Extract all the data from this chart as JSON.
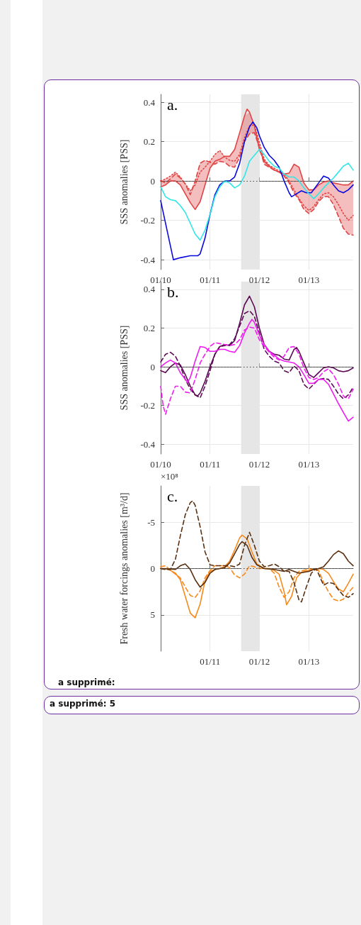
{
  "chart_data": [
    {
      "type": "line",
      "title": "a.",
      "ylabel": "SSS anomalies [PSS]",
      "xlim": [
        "2010-01-01",
        "2013-11-25"
      ],
      "xticks": [
        {
          "value": "2010-01-01",
          "label": "01/10"
        },
        {
          "value": "2011-01-01",
          "label": "01/11"
        },
        {
          "value": "2012-01-01",
          "label": "01/12"
        },
        {
          "value": "2013-01-01",
          "label": "01/13"
        }
      ],
      "ylim": [
        -0.45,
        0.44
      ],
      "yticks": [
        -0.4,
        -0.2,
        0,
        0.2,
        0.4
      ],
      "grid": true,
      "marker": "none",
      "x": [
        "2010-01-01",
        "2010-02-06",
        "2010-03-14",
        "2010-04-20",
        "2010-05-26",
        "2010-07-02",
        "2010-08-08",
        "2010-09-13",
        "2010-10-20",
        "2010-11-25",
        "2011-01-01",
        "2011-02-06",
        "2011-03-14",
        "2011-04-20",
        "2011-05-26",
        "2011-07-02",
        "2011-08-08",
        "2011-09-13",
        "2011-10-20",
        "2011-11-25",
        "2012-01-01",
        "2012-02-06",
        "2012-03-14",
        "2012-04-20",
        "2012-05-26",
        "2012-07-02",
        "2012-08-08",
        "2012-09-13",
        "2012-10-20",
        "2012-11-25",
        "2013-01-01",
        "2013-02-06",
        "2013-03-14",
        "2013-04-20",
        "2013-05-26",
        "2013-07-02",
        "2013-08-08",
        "2013-09-13",
        "2013-10-20",
        "2013-11-25"
      ],
      "bands": [
        {
          "axis": "x",
          "from": "2011-08-19",
          "to": "2012-01-01",
          "color": "#e6e6e6"
        }
      ],
      "ref_lines": [
        {
          "axis": "y",
          "value": 0,
          "color": "#444444",
          "line_style": "dotted"
        }
      ],
      "series": [
        {
          "color": "#e04444",
          "line_style": "dashed",
          "values": [
            0,
            -0.01,
            0.01,
            0.035,
            0.015,
            -0.015,
            -0.07,
            0,
            0.09,
            0.105,
            0.095,
            0.085,
            0.1,
            0.095,
            0.075,
            0.07,
            0.12,
            0.2,
            0.24,
            0.245,
            0.17,
            0.085,
            0.07,
            0.055,
            0.045,
            0.025,
            -0.01,
            -0.06,
            -0.095,
            -0.145,
            -0.165,
            -0.145,
            -0.105,
            -0.08,
            -0.08,
            -0.12,
            -0.18,
            -0.24,
            -0.27,
            -0.275
          ],
          "lower": [
            -0.03,
            -0.02,
            0,
            0,
            -0.02,
            -0.065,
            -0.11,
            -0.145,
            -0.105,
            -0.02,
            0.065,
            0.085,
            0.1,
            0.095,
            0.075,
            0.07,
            0.12,
            0.2,
            0.24,
            0.245,
            0.16,
            0.085,
            0.07,
            0.055,
            0.045,
            0.025,
            -0.01,
            -0.06,
            -0.095,
            -0.145,
            -0.165,
            -0.145,
            -0.105,
            -0.08,
            -0.08,
            -0.12,
            -0.18,
            -0.24,
            -0.27,
            -0.275
          ],
          "upper": [
            0,
            0.01,
            0.025,
            0.045,
            0.02,
            -0.015,
            -0.05,
            0,
            0.09,
            0.105,
            0.1,
            0.135,
            0.155,
            0.125,
            0.125,
            0.16,
            0.245,
            0.33,
            0.35,
            0.285,
            0.195,
            0.11,
            0.08,
            0.065,
            0.05,
            0.035,
            0.04,
            0.085,
            0.07,
            -0.01,
            -0.045,
            -0.045,
            -0.02,
            -0.005,
            0,
            -0.01,
            -0.015,
            -0.02,
            -0.02,
            0
          ]
        },
        {
          "color": "#e04444",
          "line_style": "dotted",
          "values": [
            0,
            0.01,
            0.025,
            0.045,
            0.02,
            -0.015,
            -0.05,
            -0.02,
            0.045,
            0.07,
            0.1,
            0.135,
            0.155,
            0.12,
            0.105,
            0.1,
            0.135,
            0.22,
            0.28,
            0.285,
            0.195,
            0.11,
            0.08,
            0.065,
            0.05,
            0.035,
            0,
            -0.045,
            -0.09,
            -0.125,
            -0.15,
            -0.13,
            -0.095,
            -0.065,
            -0.06,
            -0.08,
            -0.12,
            -0.165,
            -0.2,
            -0.175
          ]
        },
        {
          "color": "#e04444",
          "line_style": "solid",
          "x": [
            "2010-01-01",
            "2010-02-06",
            "2010-03-14",
            "2010-04-20",
            "2010-05-26",
            "2010-07-02",
            "2010-08-08",
            "2010-09-13",
            "2010-10-20",
            "2010-11-25",
            "2011-01-01",
            "2011-02-06",
            "2011-03-14",
            "2011-04-20",
            "2011-05-26",
            "2011-07-02",
            "2011-08-08",
            "2011-09-13",
            "2011-10-02",
            "2011-10-20",
            "2011-11-25",
            "2012-01-01",
            "2012-02-06",
            "2012-03-14",
            "2012-04-20",
            "2012-05-26",
            "2012-07-02",
            "2012-08-08",
            "2012-09-13",
            "2012-10-20",
            "2012-11-25",
            "2013-01-01",
            "2013-02-06",
            "2013-03-14",
            "2013-04-20",
            "2013-05-26",
            "2013-07-02",
            "2013-08-08",
            "2013-09-13",
            "2013-10-20",
            "2013-11-25"
          ],
          "values": [
            -0.03,
            -0.02,
            0,
            0,
            -0.02,
            -0.065,
            -0.11,
            -0.145,
            -0.105,
            -0.02,
            0.065,
            0.1,
            0.11,
            0.125,
            0.125,
            0.16,
            0.245,
            0.33,
            0.365,
            0.35,
            0.28,
            0.16,
            0.1,
            0.075,
            0.055,
            0.045,
            0.035,
            0.04,
            0.085,
            0.07,
            -0.01,
            -0.045,
            -0.045,
            -0.02,
            -0.005,
            0,
            -0.01,
            -0.015,
            -0.02,
            -0.02,
            0
          ]
        },
        {
          "color": "#0a0ae0",
          "line_style": "solid",
          "x": [
            "2010-01-01",
            "2010-04-05",
            "2010-05-26",
            "2010-08-08",
            "2010-10-02",
            "2010-10-20",
            "2010-11-25",
            "2011-01-01",
            "2011-02-06",
            "2011-03-14",
            "2011-04-20",
            "2011-05-26",
            "2011-07-02",
            "2011-08-08",
            "2011-09-13",
            "2011-10-20",
            "2011-11-14",
            "2011-12-13",
            "2012-01-01",
            "2012-02-06",
            "2012-03-14",
            "2012-04-20",
            "2012-05-26",
            "2012-07-02",
            "2012-08-08",
            "2012-08-26",
            "2012-10-02",
            "2012-11-07",
            "2012-12-13",
            "2013-01-19",
            "2013-03-14",
            "2013-04-20",
            "2013-05-26",
            "2013-07-02",
            "2013-08-08",
            "2013-09-13",
            "2013-10-20",
            "2013-11-25"
          ],
          "values": [
            -0.1,
            -0.4,
            -0.39,
            -0.38,
            -0.38,
            -0.37,
            -0.29,
            -0.17,
            -0.07,
            -0.02,
            0,
            0,
            0.02,
            0.09,
            0.2,
            0.275,
            0.3,
            0.27,
            0.23,
            0.17,
            0.13,
            0.105,
            0.07,
            0,
            -0.06,
            -0.08,
            -0.065,
            -0.05,
            -0.06,
            -0.06,
            -0.01,
            0.025,
            0.015,
            -0.02,
            -0.05,
            -0.06,
            -0.045,
            -0.02
          ]
        },
        {
          "color": "#30e6e6",
          "line_style": "solid",
          "values": [
            -0.03,
            -0.08,
            -0.095,
            -0.1,
            -0.125,
            -0.16,
            -0.215,
            -0.27,
            -0.3,
            -0.25,
            -0.17,
            -0.08,
            -0.03,
            0,
            -0.01,
            -0.035,
            -0.02,
            0.025,
            0.1,
            0.13,
            0.16,
            0.135,
            0.1,
            0.075,
            0.065,
            0.035,
            0.02,
            0.02,
            0,
            -0.035,
            -0.065,
            -0.09,
            -0.065,
            -0.035,
            -0.01,
            0.015,
            0.045,
            0.075,
            0.09,
            0.055
          ]
        }
      ]
    },
    {
      "type": "line",
      "title": "b.",
      "ylabel": "SSS anomalies [PSS]",
      "xlim": [
        "2010-01-01",
        "2013-11-25"
      ],
      "xticks": [
        {
          "value": "2010-01-01",
          "label": "01/10"
        },
        {
          "value": "2011-01-01",
          "label": "01/11"
        },
        {
          "value": "2012-01-01",
          "label": "01/12"
        },
        {
          "value": "2013-01-01",
          "label": "01/13"
        }
      ],
      "ylim": [
        -0.45,
        0.44
      ],
      "yticks": [
        -0.4,
        -0.2,
        0,
        0.2,
        0.4
      ],
      "grid": true,
      "marker": "none",
      "x": [
        "2010-01-01",
        "2010-02-06",
        "2010-03-14",
        "2010-04-20",
        "2010-05-26",
        "2010-07-02",
        "2010-08-08",
        "2010-09-13",
        "2010-10-20",
        "2010-11-25",
        "2011-01-01",
        "2011-02-06",
        "2011-03-14",
        "2011-04-20",
        "2011-05-26",
        "2011-07-02",
        "2011-08-08",
        "2011-09-13",
        "2011-10-20",
        "2011-11-25",
        "2012-01-01",
        "2012-02-06",
        "2012-03-14",
        "2012-04-20",
        "2012-05-26",
        "2012-07-02",
        "2012-08-08",
        "2012-09-13",
        "2012-10-20",
        "2012-11-25",
        "2013-01-01",
        "2013-02-06",
        "2013-03-14",
        "2013-04-20",
        "2013-05-26",
        "2013-07-02",
        "2013-08-08",
        "2013-09-13",
        "2013-10-20",
        "2013-11-25"
      ],
      "bands": [
        {
          "axis": "x",
          "from": "2011-08-19",
          "to": "2012-01-01",
          "color": "#e6e6e6"
        }
      ],
      "ref_lines": [
        {
          "axis": "y",
          "value": 0,
          "color": "#444444",
          "line_style": "dotted"
        }
      ],
      "series": [
        {
          "color": "#5c0a55",
          "line_style": "dashed",
          "values": [
            0.025,
            0.065,
            0.075,
            0.055,
            0.005,
            -0.065,
            -0.115,
            -0.145,
            -0.16,
            -0.1,
            -0.02,
            0.065,
            0.105,
            0.11,
            0.115,
            0.145,
            0.21,
            0.275,
            0.29,
            0.26,
            0.175,
            0.09,
            0.055,
            0.03,
            0.02,
            -0.02,
            -0.03,
            0.005,
            -0.02,
            -0.09,
            -0.115,
            -0.09,
            -0.065,
            -0.06,
            -0.065,
            -0.1,
            -0.14,
            -0.165,
            -0.145,
            -0.105
          ]
        },
        {
          "color": "#5c0a55",
          "line_style": "solid",
          "x": [
            "2010-01-01",
            "2010-02-06",
            "2010-03-14",
            "2010-04-20",
            "2010-05-26",
            "2010-07-02",
            "2010-08-08",
            "2010-09-13",
            "2010-10-02",
            "2010-10-20",
            "2010-11-25",
            "2011-01-01",
            "2011-02-06",
            "2011-03-14",
            "2011-04-20",
            "2011-05-26",
            "2011-07-02",
            "2011-08-08",
            "2011-09-13",
            "2011-10-20",
            "2011-11-25",
            "2012-01-01",
            "2012-02-06",
            "2012-03-14",
            "2012-04-20",
            "2012-05-26",
            "2012-07-02",
            "2012-08-08",
            "2012-09-13",
            "2012-10-02",
            "2012-10-20",
            "2012-11-25",
            "2013-01-01",
            "2013-02-06",
            "2013-03-14",
            "2013-04-20",
            "2013-05-26",
            "2013-07-02",
            "2013-08-08",
            "2013-09-13",
            "2013-10-20",
            "2013-11-25"
          ],
          "values": [
            -0.02,
            -0.03,
            0,
            0.02,
            0.01,
            -0.04,
            -0.1,
            -0.145,
            -0.15,
            -0.135,
            -0.075,
            0,
            0.065,
            0.105,
            0.115,
            0.11,
            0.135,
            0.225,
            0.32,
            0.365,
            0.31,
            0.2,
            0.115,
            0.08,
            0.065,
            0.06,
            0.04,
            0.035,
            0.09,
            0.1,
            0.08,
            0.02,
            -0.04,
            -0.055,
            -0.03,
            -0.005,
            0,
            -0.005,
            -0.02,
            -0.025,
            -0.02,
            -0.005
          ]
        },
        {
          "color": "#f01cf0",
          "line_style": "dashed",
          "x": [
            "2010-01-01",
            "2010-01-19",
            "2010-02-06",
            "2010-03-14",
            "2010-04-20",
            "2010-05-26",
            "2010-07-02",
            "2010-08-08",
            "2010-09-13",
            "2010-10-20",
            "2010-11-25",
            "2011-01-01",
            "2011-02-06",
            "2011-03-14",
            "2011-04-20",
            "2011-05-26",
            "2011-07-02",
            "2011-08-08",
            "2011-09-13",
            "2011-10-20",
            "2011-11-25",
            "2012-01-01",
            "2012-02-06",
            "2012-03-14",
            "2012-04-20",
            "2012-05-26",
            "2012-07-02",
            "2012-08-08",
            "2012-09-13",
            "2012-10-20",
            "2012-11-25",
            "2013-01-01",
            "2013-02-06",
            "2013-03-14",
            "2013-04-20",
            "2013-05-26",
            "2013-07-02",
            "2013-08-08",
            "2013-09-13",
            "2013-10-20",
            "2013-11-25"
          ],
          "values": [
            -0.1,
            -0.2,
            -0.245,
            -0.165,
            -0.1,
            -0.1,
            -0.13,
            -0.135,
            -0.065,
            0.02,
            0.065,
            0.105,
            0.125,
            0.12,
            0.115,
            0.11,
            0.115,
            0.14,
            0.19,
            0.205,
            0.2,
            0.14,
            0.105,
            0.075,
            0.05,
            0.035,
            0.055,
            0.1,
            0.105,
            0.065,
            -0.005,
            -0.055,
            -0.065,
            -0.055,
            -0.025,
            -0.01,
            -0.04,
            -0.09,
            -0.15,
            -0.165,
            -0.115
          ]
        },
        {
          "color": "#f01cf0",
          "line_style": "solid",
          "x": [
            "2010-01-01",
            "2010-02-06",
            "2010-03-14",
            "2010-04-20",
            "2010-05-26",
            "2010-07-02",
            "2010-07-20",
            "2010-08-08",
            "2010-09-13",
            "2010-10-20",
            "2010-11-25",
            "2011-01-01",
            "2011-02-06",
            "2011-03-14",
            "2011-04-20",
            "2011-05-26",
            "2011-07-02",
            "2011-08-08",
            "2011-09-13",
            "2011-10-20",
            "2011-11-07",
            "2011-11-25",
            "2012-01-01",
            "2012-02-06",
            "2012-03-14",
            "2012-04-20",
            "2012-05-26",
            "2012-07-02",
            "2012-08-08",
            "2012-09-13",
            "2012-10-20",
            "2012-11-25",
            "2013-01-01",
            "2013-02-06",
            "2013-03-14",
            "2013-04-20",
            "2013-05-26",
            "2013-07-02",
            "2013-08-08",
            "2013-09-13",
            "2013-10-20",
            "2013-11-25"
          ],
          "values": [
            0,
            0.02,
            0.035,
            0.02,
            -0.03,
            -0.065,
            -0.08,
            -0.055,
            0.03,
            0.105,
            0.1,
            0.08,
            0.08,
            0.09,
            0.09,
            0.08,
            0.075,
            0.11,
            0.175,
            0.225,
            0.245,
            0.23,
            0.165,
            0.115,
            0.08,
            0.06,
            0.04,
            0.03,
            0.025,
            0.02,
            0,
            -0.04,
            -0.085,
            -0.085,
            -0.065,
            -0.065,
            -0.09,
            -0.14,
            -0.19,
            -0.235,
            -0.28,
            -0.26
          ]
        }
      ]
    },
    {
      "type": "line",
      "title": "c.",
      "ylabel": "Fresh water forcings anomalies [m³/d]",
      "xlim": [
        "2010-01-01",
        "2013-11-25"
      ],
      "xticks": [
        {
          "value": "2011-01-01",
          "label": "01/11"
        },
        {
          "value": "2012-01-01",
          "label": "01/12"
        },
        {
          "value": "2013-01-01",
          "label": "01/13"
        }
      ],
      "ylim": [
        8.9,
        -8.9
      ],
      "yticks": [
        -5,
        0,
        5
      ],
      "grid": true,
      "marker": "none",
      "annotations": [
        "×10⁸",
        "a supprimé:",
        "a supprimé: 5"
      ],
      "bands": [
        {
          "axis": "x",
          "from": "2011-08-19",
          "to": "2012-01-01",
          "color": "#e6e6e6"
        }
      ],
      "ref_lines": [
        {
          "axis": "y",
          "value": 0,
          "color": "#444444",
          "line_style": "dotted"
        }
      ],
      "series": [
        {
          "color": "#f78a1d",
          "line_style": "dashed",
          "x": [
            "2010-01-01",
            "2010-02-06",
            "2010-03-14",
            "2010-04-20",
            "2010-05-26",
            "2010-07-02",
            "2010-08-08",
            "2010-09-13",
            "2010-10-20",
            "2010-11-25",
            "2011-01-01",
            "2011-02-06",
            "2011-03-14",
            "2011-04-20",
            "2011-05-26",
            "2011-07-02",
            "2011-08-08",
            "2011-09-13",
            "2011-10-20",
            "2011-11-25",
            "2012-01-01",
            "2012-03-14",
            "2012-04-20",
            "2012-05-26",
            "2012-07-02",
            "2012-08-08",
            "2012-09-13",
            "2012-10-20",
            "2012-11-25",
            "2013-01-01",
            "2013-03-14",
            "2013-04-20",
            "2013-05-26",
            "2013-07-02",
            "2013-08-08",
            "2013-09-13",
            "2013-10-20",
            "2013-11-25"
          ],
          "values": [
            -0.2,
            -0.3,
            0.2,
            0.6,
            1,
            2,
            2.9,
            3.1,
            2.4,
            1,
            0.2,
            -0.3,
            -0.3,
            -0.3,
            -0.1,
            0.7,
            1,
            0.6,
            -0.3,
            -0.2,
            0,
            0,
            0.5,
            2,
            3.1,
            2.5,
            1,
            0.3,
            0.2,
            0,
            0.2,
            1.5,
            2.5,
            3.3,
            3.5,
            3.3,
            2.6,
            2
          ]
        },
        {
          "color": "#f78a1d",
          "line_style": "solid",
          "x": [
            "2010-01-01",
            "2010-02-06",
            "2010-03-14",
            "2010-04-20",
            "2010-05-26",
            "2010-07-02",
            "2010-08-08",
            "2010-09-13",
            "2010-10-20",
            "2010-11-25",
            "2011-01-01",
            "2011-02-06",
            "2011-03-14",
            "2011-04-20",
            "2011-05-26",
            "2011-07-02",
            "2011-08-08",
            "2011-08-26",
            "2011-10-02",
            "2011-11-07",
            "2011-12-13",
            "2012-02-06",
            "2012-03-14",
            "2012-04-20",
            "2012-05-26",
            "2012-07-02",
            "2012-07-20",
            "2012-08-26",
            "2012-10-02",
            "2012-11-07",
            "2013-01-01",
            "2013-02-06",
            "2013-03-14",
            "2013-04-20",
            "2013-05-26",
            "2013-07-02",
            "2013-08-08",
            "2013-09-13",
            "2013-10-20",
            "2013-11-25"
          ],
          "values": [
            0,
            0,
            0.2,
            0.5,
            1.2,
            3,
            4.8,
            5.3,
            3.8,
            1.3,
            0.3,
            0.1,
            0,
            -0.2,
            -0.8,
            -2,
            -3.3,
            -3.6,
            -3.2,
            -1.8,
            -0.5,
            0,
            0,
            0.2,
            0.6,
            2.5,
            3.9,
            3,
            1,
            0.4,
            0.2,
            0.1,
            0,
            0.1,
            0.5,
            1.4,
            2.2,
            2.5,
            1.6,
            0.6
          ]
        },
        {
          "color": "#5a3010",
          "line_style": "dashed",
          "x": [
            "2010-01-01",
            "2010-02-06",
            "2010-03-14",
            "2010-04-20",
            "2010-05-26",
            "2010-07-02",
            "2010-08-08",
            "2010-08-26",
            "2010-09-13",
            "2010-10-20",
            "2010-11-25",
            "2011-01-01",
            "2011-02-06",
            "2011-03-14",
            "2011-04-20",
            "2011-05-26",
            "2011-07-02",
            "2011-08-08",
            "2011-09-13",
            "2011-10-20",
            "2011-11-25",
            "2012-01-01",
            "2012-02-06",
            "2012-03-14",
            "2012-04-20",
            "2012-05-26",
            "2012-07-02",
            "2012-08-08",
            "2012-09-13",
            "2012-10-20",
            "2012-11-07",
            "2012-12-13",
            "2013-01-19",
            "2013-02-24",
            "2013-04-20",
            "2013-05-26",
            "2013-07-02",
            "2013-08-08",
            "2013-09-13",
            "2013-10-20",
            "2013-11-25"
          ],
          "values": [
            0,
            0.1,
            0.1,
            -1,
            -3.5,
            -5.8,
            -7.1,
            -7.3,
            -6.8,
            -4.5,
            -1.8,
            -0.4,
            -0.3,
            -0.3,
            -0.3,
            -0.3,
            -0.2,
            -0.5,
            -2.5,
            -3.9,
            -2.5,
            -0.8,
            -0.2,
            -0.3,
            -0.5,
            -0.2,
            0.3,
            0.3,
            1.5,
            3.4,
            3.6,
            2,
            0.5,
            0,
            1.8,
            1.5,
            1.6,
            2.3,
            2.9,
            3.1,
            2.7
          ]
        },
        {
          "color": "#5a3010",
          "line_style": "solid",
          "x": [
            "2010-01-01",
            "2010-03-14",
            "2010-04-20",
            "2010-05-26",
            "2010-07-02",
            "2010-08-08",
            "2010-09-13",
            "2010-10-20",
            "2010-11-25",
            "2011-01-01",
            "2011-02-06",
            "2011-03-14",
            "2011-04-20",
            "2011-05-26",
            "2011-07-02",
            "2011-08-08",
            "2011-08-26",
            "2011-10-02",
            "2011-11-07",
            "2011-12-13",
            "2012-02-06",
            "2012-04-20",
            "2012-07-02",
            "2012-08-08",
            "2012-09-13",
            "2012-10-20",
            "2012-11-25",
            "2013-01-01",
            "2013-02-06",
            "2013-03-14",
            "2013-04-20",
            "2013-05-26",
            "2013-07-02",
            "2013-08-08",
            "2013-09-13",
            "2013-10-20",
            "2013-11-25"
          ],
          "values": [
            0,
            0.05,
            0.1,
            -0.3,
            -0.5,
            0.1,
            1.2,
            2,
            1.5,
            0.5,
            0.1,
            0,
            -0.1,
            -0.6,
            -1.6,
            -2.6,
            -2.9,
            -2.5,
            -1.2,
            -0.4,
            0,
            0.1,
            0.3,
            0.1,
            0.3,
            0.5,
            0.4,
            0.3,
            0.1,
            0,
            -0.2,
            -0.8,
            -1.5,
            -1.9,
            -1.6,
            -0.8,
            -0.3
          ]
        }
      ]
    }
  ]
}
